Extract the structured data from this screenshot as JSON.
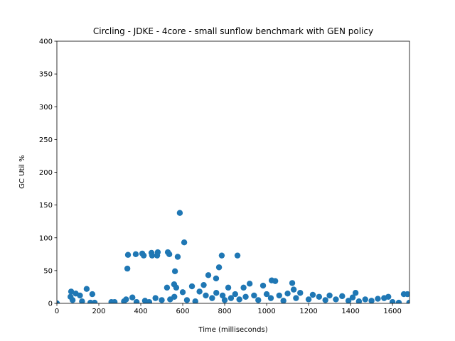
{
  "chart_data": {
    "type": "scatter",
    "title": "Circling - JDKE - 4core -  small sunflow benchmark with GEN policy",
    "x_label": "Time (milliseconds)",
    "y_label": "GC Util %",
    "color": "#1f77b4",
    "grid": false,
    "xlim": [
      0,
      1681
    ],
    "ylim": [
      0,
      400
    ],
    "xticks": [
      0,
      200,
      400,
      600,
      800,
      1000,
      1200,
      1400,
      1600
    ],
    "yticks": [
      0,
      50,
      100,
      150,
      200,
      250,
      300,
      350,
      400
    ],
    "x": [
      586,
      607,
      339,
      376,
      407,
      414,
      451,
      454,
      481,
      478,
      529,
      536,
      576,
      336,
      563,
      786,
      861,
      773,
      722,
      759,
      559,
      569,
      525,
      1024,
      1041,
      919,
      983,
      1122,
      817,
      68,
      142,
      169,
      644,
      1129,
      1424,
      1671,
      1654,
      1580,
      65,
      75,
      90,
      110,
      120,
      160,
      180,
      260,
      275,
      320,
      330,
      360,
      380,
      420,
      440,
      470,
      500,
      540,
      560,
      600,
      620,
      660,
      680,
      700,
      710,
      740,
      760,
      790,
      800,
      830,
      850,
      870,
      890,
      900,
      940,
      960,
      1000,
      1020,
      1060,
      1080,
      1100,
      1140,
      1160,
      1200,
      1220,
      1250,
      1280,
      1300,
      1330,
      1360,
      1390,
      1410,
      1440,
      1470,
      1500,
      1530,
      1560,
      1600,
      1630,
      1680,
      0
    ],
    "y": [
      138,
      93,
      74,
      75,
      76,
      73,
      77,
      73,
      78,
      73,
      78,
      75,
      71,
      53,
      49,
      73,
      73,
      55,
      43,
      38,
      29,
      24,
      24,
      35,
      34,
      30,
      27,
      31,
      24,
      18,
      22,
      14,
      26,
      21,
      16,
      14,
      14,
      10,
      10,
      5,
      15,
      12,
      3,
      1,
      1,
      2,
      2,
      3,
      6,
      9,
      2,
      4,
      2,
      8,
      5,
      6,
      10,
      17,
      5,
      3,
      18,
      28,
      12,
      8,
      16,
      12,
      5,
      8,
      14,
      6,
      24,
      10,
      12,
      5,
      14,
      8,
      12,
      4,
      15,
      8,
      16,
      6,
      13,
      10,
      5,
      12,
      6,
      11,
      4,
      9,
      3,
      6,
      4,
      7,
      8,
      2,
      1,
      1,
      0
    ]
  }
}
